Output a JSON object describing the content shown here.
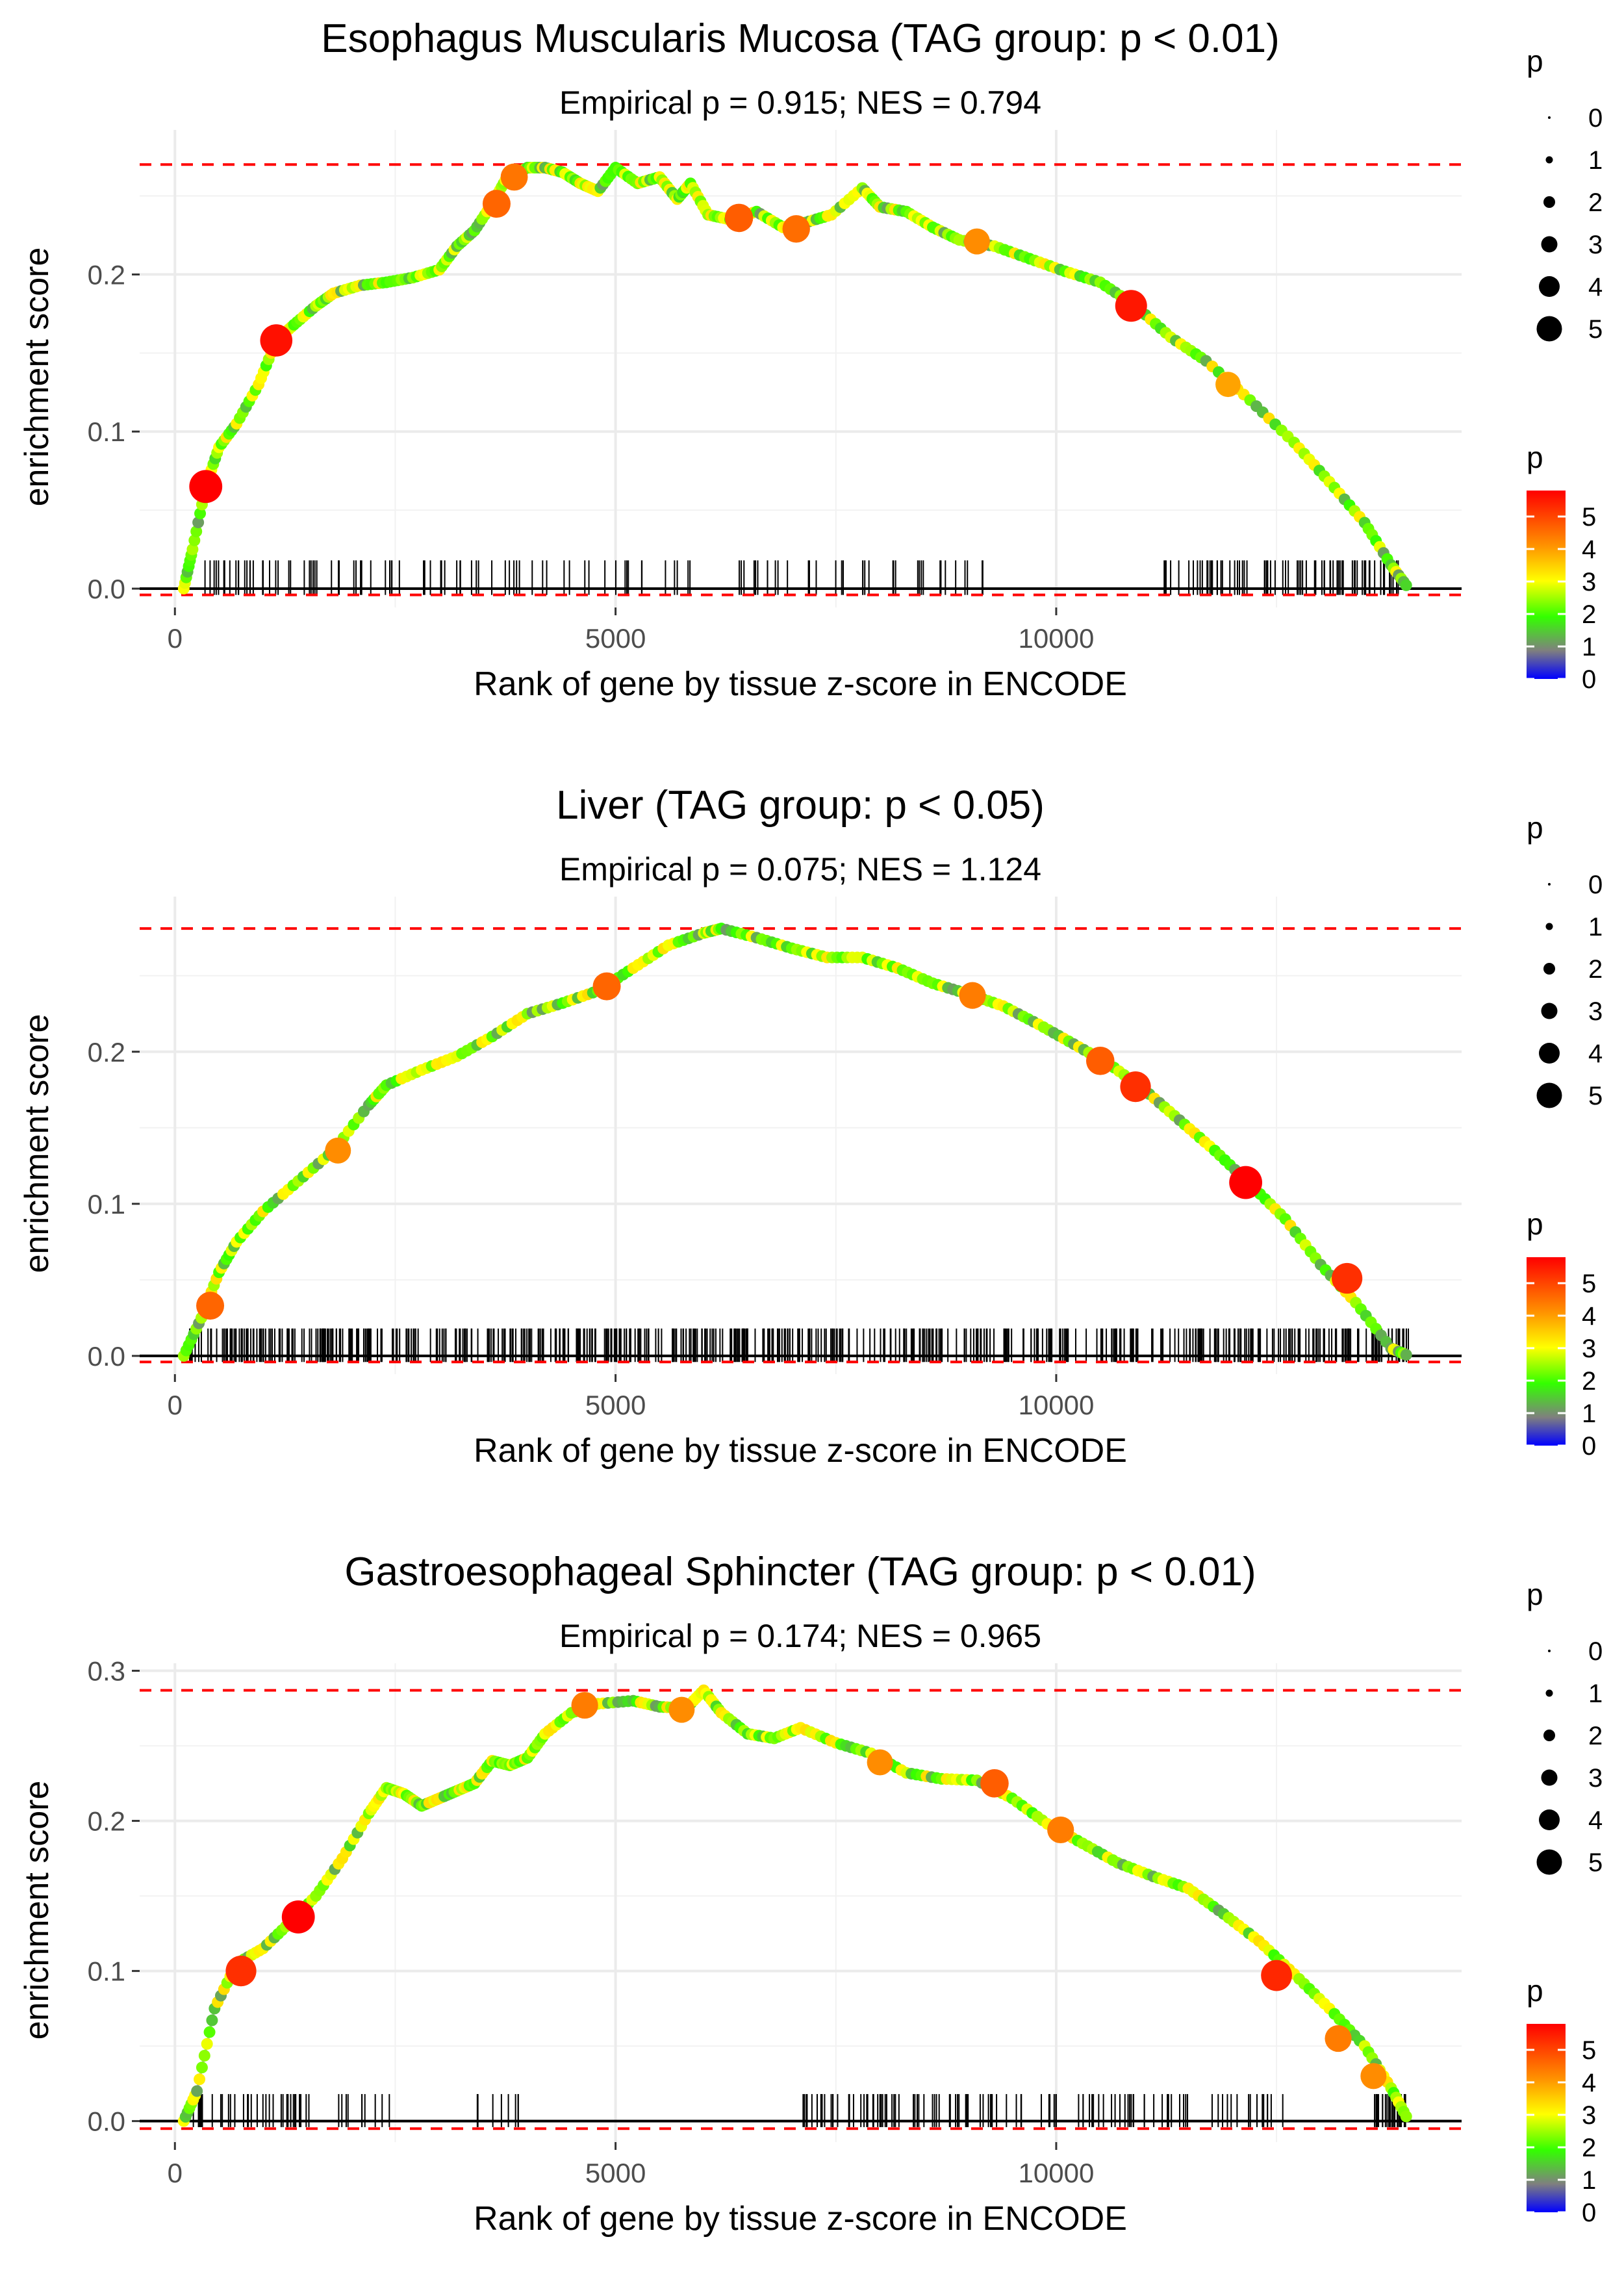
{
  "chart_data": [
    {
      "type": "line",
      "title": "Esophagus Muscularis Mucosa (TAG group: p < 0.01)",
      "subtitle": "Empirical p = 0.915; NES = 0.794",
      "xlabel": "Rank of gene by tissue z-score in ENCODE",
      "ylabel": "enrichment score",
      "xlim": [
        -400,
        14600
      ],
      "ylim": [
        -0.012,
        0.292
      ],
      "xticks": [
        0,
        5000,
        10000
      ],
      "xtick_labels": [
        "0",
        "5000",
        "10000"
      ],
      "yticks": [
        0.0,
        0.1,
        0.2
      ],
      "ytick_labels": [
        "0.0",
        "0.1",
        "0.2"
      ],
      "max_es": 0.27,
      "min_es": -0.004,
      "series": [
        {
          "name": "enrichment score",
          "x": [
            100,
            200,
            350,
            500,
            700,
            950,
            1150,
            1350,
            1600,
            1800,
            2100,
            2400,
            2700,
            3000,
            3200,
            3400,
            3600,
            3750,
            4000,
            4200,
            4400,
            4600,
            4800,
            5000,
            5250,
            5500,
            5700,
            5850,
            6050,
            6300,
            6600,
            6900,
            7150,
            7450,
            7800,
            8000,
            8300,
            8600,
            8900,
            9300,
            9700,
            10100,
            10500,
            10900,
            11300,
            11700,
            12200,
            12700,
            13100,
            13500,
            13800,
            14000
          ],
          "values": [
            0.0,
            0.025,
            0.065,
            0.09,
            0.105,
            0.13,
            0.158,
            0.168,
            0.18,
            0.188,
            0.193,
            0.195,
            0.198,
            0.203,
            0.218,
            0.228,
            0.245,
            0.26,
            0.268,
            0.268,
            0.265,
            0.258,
            0.253,
            0.268,
            0.258,
            0.262,
            0.248,
            0.258,
            0.238,
            0.235,
            0.24,
            0.23,
            0.233,
            0.238,
            0.255,
            0.243,
            0.24,
            0.23,
            0.222,
            0.218,
            0.21,
            0.202,
            0.195,
            0.18,
            0.16,
            0.145,
            0.12,
            0.093,
            0.068,
            0.042,
            0.015,
            0.0
          ]
        }
      ],
      "highlighted_points": [
        {
          "x": 350,
          "y": 0.065,
          "p": 5.8
        },
        {
          "x": 1150,
          "y": 0.158,
          "p": 5.6
        },
        {
          "x": 3650,
          "y": 0.245,
          "p": 4.5
        },
        {
          "x": 3850,
          "y": 0.262,
          "p": 4.3
        },
        {
          "x": 6400,
          "y": 0.236,
          "p": 4.6
        },
        {
          "x": 7050,
          "y": 0.229,
          "p": 4.4
        },
        {
          "x": 9100,
          "y": 0.221,
          "p": 4.0
        },
        {
          "x": 10850,
          "y": 0.18,
          "p": 5.5
        },
        {
          "x": 11950,
          "y": 0.13,
          "p": 3.8
        }
      ],
      "gene_ticks": {
        "density": "sparse",
        "clusters": [
          [
            300,
            1700,
            30
          ],
          [
            1700,
            3600,
            28
          ],
          [
            3600,
            4500,
            10
          ],
          [
            4600,
            5900,
            14
          ],
          [
            6400,
            8200,
            24
          ],
          [
            8400,
            9200,
            12
          ],
          [
            11200,
            12600,
            34
          ],
          [
            12600,
            13900,
            40
          ]
        ]
      },
      "legend_size": {
        "title": "p",
        "labels": [
          "0",
          "1",
          "2",
          "3",
          "4",
          "5"
        ]
      },
      "legend_color": {
        "title": "p",
        "labels": [
          "5",
          "4",
          "3",
          "2",
          "1",
          "0"
        ],
        "colors": [
          "#ff0000",
          "#ff8c00",
          "#ffff00",
          "#33ff00",
          "#7f7f7f",
          "#0000ff"
        ]
      }
    },
    {
      "type": "line",
      "title": "Liver (TAG group: p < 0.05)",
      "subtitle": "Empirical p = 0.075; NES = 1.124",
      "xlabel": "Rank of gene by tissue z-score in ENCODE",
      "ylabel": "enrichment score",
      "xlim": [
        -400,
        14600
      ],
      "ylim": [
        -0.012,
        0.302
      ],
      "xticks": [
        0,
        5000,
        10000
      ],
      "xtick_labels": [
        "0",
        "5000",
        "10000"
      ],
      "yticks": [
        0.0,
        0.1,
        0.2
      ],
      "ytick_labels": [
        "0.0",
        "0.1",
        "0.2"
      ],
      "max_es": 0.281,
      "min_es": -0.004,
      "series": [
        {
          "name": "enrichment score",
          "x": [
            100,
            300,
            500,
            700,
            1000,
            1400,
            1800,
            2200,
            2400,
            2800,
            3200,
            3600,
            4000,
            4400,
            4800,
            5200,
            5600,
            6000,
            6200,
            6600,
            7000,
            7400,
            7800,
            8200,
            8600,
            9000,
            9400,
            9800,
            10200,
            10600,
            11000,
            11400,
            11800,
            12200,
            12600,
            13000,
            13400,
            13800,
            14000
          ],
          "values": [
            0.0,
            0.025,
            0.055,
            0.075,
            0.095,
            0.115,
            0.135,
            0.165,
            0.178,
            0.188,
            0.197,
            0.21,
            0.225,
            0.232,
            0.24,
            0.255,
            0.27,
            0.278,
            0.281,
            0.275,
            0.268,
            0.262,
            0.262,
            0.255,
            0.245,
            0.238,
            0.23,
            0.218,
            0.205,
            0.192,
            0.175,
            0.155,
            0.135,
            0.113,
            0.09,
            0.06,
            0.035,
            0.005,
            0.0
          ]
        }
      ],
      "highlighted_points": [
        {
          "x": 400,
          "y": 0.033,
          "p": 4.5
        },
        {
          "x": 1850,
          "y": 0.135,
          "p": 4.0
        },
        {
          "x": 4900,
          "y": 0.243,
          "p": 4.5
        },
        {
          "x": 9050,
          "y": 0.237,
          "p": 4.2
        },
        {
          "x": 10500,
          "y": 0.194,
          "p": 4.6
        },
        {
          "x": 10900,
          "y": 0.177,
          "p": 5.2
        },
        {
          "x": 12150,
          "y": 0.114,
          "p": 5.8
        },
        {
          "x": 13300,
          "y": 0.051,
          "p": 5.2
        }
      ],
      "gene_ticks": {
        "density": "dense",
        "clusters": [
          [
            100,
            14000,
            560
          ]
        ]
      },
      "legend_size": {
        "title": "p",
        "labels": [
          "0",
          "1",
          "2",
          "3",
          "4",
          "5"
        ]
      },
      "legend_color": {
        "title": "p",
        "labels": [
          "5",
          "4",
          "3",
          "2",
          "1",
          "0"
        ],
        "colors": [
          "#ff0000",
          "#ff8c00",
          "#ffff00",
          "#33ff00",
          "#7f7f7f",
          "#0000ff"
        ]
      }
    },
    {
      "type": "line",
      "title": "Gastroesophageal Sphincter (TAG group: p < 0.01)",
      "subtitle": "Empirical p = 0.174; NES = 0.965",
      "xlabel": "Rank of gene by tissue z-score in ENCODE",
      "ylabel": "enrichment score",
      "xlim": [
        -400,
        14600
      ],
      "ylim": [
        -0.014,
        0.305
      ],
      "xticks": [
        0,
        5000,
        10000
      ],
      "xtick_labels": [
        "0",
        "5000",
        "10000"
      ],
      "yticks": [
        0.0,
        0.1,
        0.2,
        0.3
      ],
      "ytick_labels": [
        "0.0",
        "0.1",
        "0.2",
        "0.3"
      ],
      "max_es": 0.287,
      "min_es": -0.005,
      "series": [
        {
          "name": "enrichment score",
          "x": [
            100,
            250,
            450,
            700,
            1000,
            1300,
            1600,
            1900,
            2200,
            2400,
            2600,
            2800,
            3000,
            3200,
            3400,
            3600,
            3800,
            4000,
            4200,
            4500,
            4800,
            5200,
            5500,
            5800,
            6000,
            6200,
            6500,
            6800,
            7100,
            7500,
            7900,
            8300,
            8700,
            9100,
            9500,
            9900,
            10300,
            10700,
            11100,
            11500,
            11900,
            12300,
            12700,
            13100,
            13500,
            13800,
            14000
          ],
          "values": [
            0.0,
            0.02,
            0.075,
            0.105,
            0.115,
            0.132,
            0.15,
            0.175,
            0.205,
            0.222,
            0.218,
            0.21,
            0.215,
            0.22,
            0.225,
            0.24,
            0.237,
            0.242,
            0.258,
            0.272,
            0.278,
            0.28,
            0.276,
            0.275,
            0.287,
            0.272,
            0.258,
            0.255,
            0.262,
            0.252,
            0.245,
            0.232,
            0.228,
            0.227,
            0.215,
            0.198,
            0.185,
            0.172,
            0.163,
            0.155,
            0.138,
            0.12,
            0.098,
            0.075,
            0.05,
            0.022,
            0.0
          ]
        }
      ],
      "highlighted_points": [
        {
          "x": 750,
          "y": 0.1,
          "p": 5.2
        },
        {
          "x": 1400,
          "y": 0.136,
          "p": 5.8
        },
        {
          "x": 4650,
          "y": 0.277,
          "p": 4.2
        },
        {
          "x": 5750,
          "y": 0.274,
          "p": 4.0
        },
        {
          "x": 8000,
          "y": 0.239,
          "p": 4.0
        },
        {
          "x": 9300,
          "y": 0.225,
          "p": 4.6
        },
        {
          "x": 10050,
          "y": 0.194,
          "p": 4.2
        },
        {
          "x": 12500,
          "y": 0.097,
          "p": 5.3
        },
        {
          "x": 13200,
          "y": 0.055,
          "p": 4.2
        },
        {
          "x": 13600,
          "y": 0.03,
          "p": 4.0
        }
      ],
      "gene_ticks": {
        "density": "sparse",
        "clusters": [
          [
            200,
            1600,
            34
          ],
          [
            1600,
            2500,
            10
          ],
          [
            3300,
            3900,
            8
          ],
          [
            7000,
            9400,
            60
          ],
          [
            9400,
            11000,
            28
          ],
          [
            11000,
            12600,
            26
          ],
          [
            13600,
            14000,
            24
          ]
        ]
      },
      "legend_size": {
        "title": "p",
        "labels": [
          "0",
          "1",
          "2",
          "3",
          "4",
          "5"
        ]
      },
      "legend_color": {
        "title": "p",
        "labels": [
          "5",
          "4",
          "3",
          "2",
          "1",
          "0"
        ],
        "colors": [
          "#ff0000",
          "#ff8c00",
          "#ffff00",
          "#33ff00",
          "#7f7f7f",
          "#0000ff"
        ]
      }
    }
  ]
}
